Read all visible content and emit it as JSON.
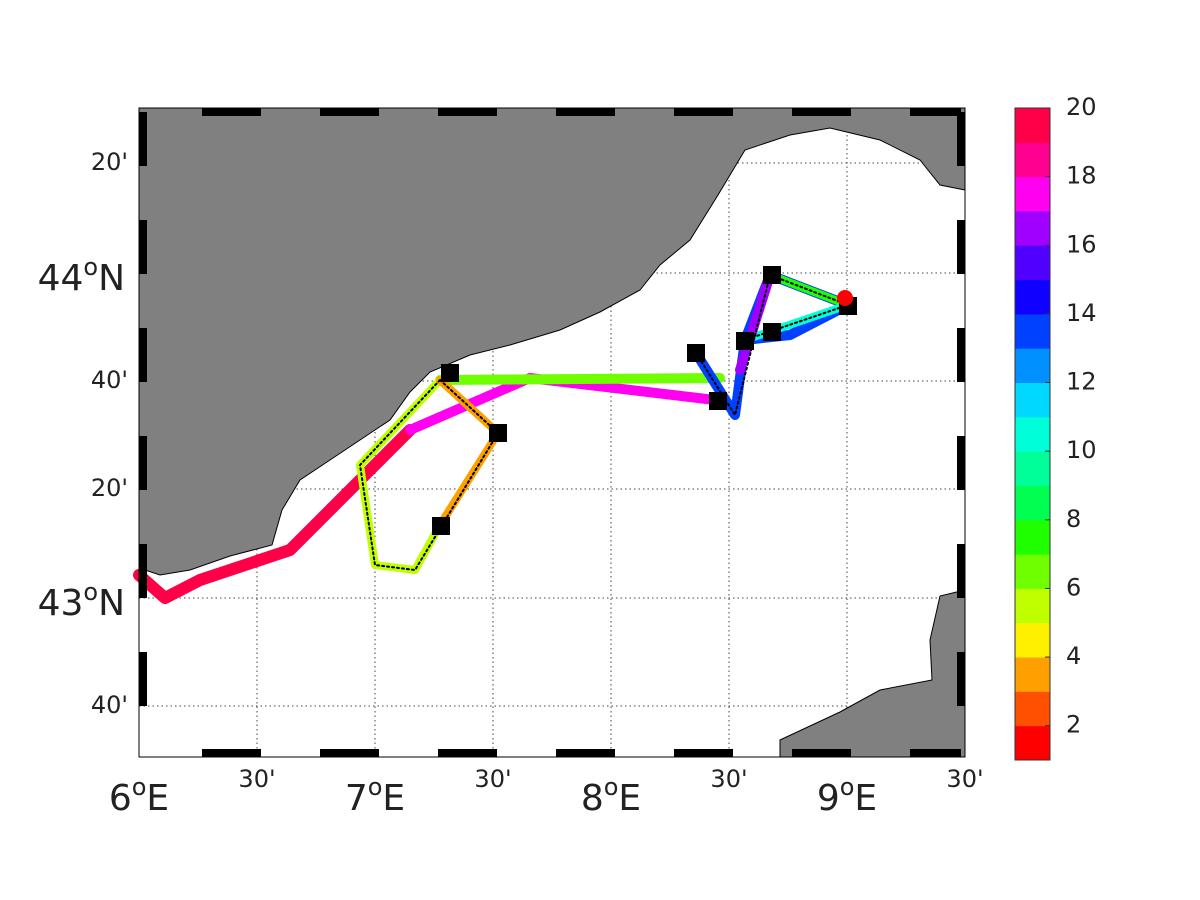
{
  "map": {
    "x_degree_labels": [
      {
        "deg": "6",
        "sup": "o",
        "hemi": "E"
      },
      {
        "deg": "7",
        "sup": "o",
        "hemi": "E"
      },
      {
        "deg": "8",
        "sup": "o",
        "hemi": "E"
      },
      {
        "deg": "9",
        "sup": "o",
        "hemi": "E"
      }
    ],
    "x_minute_labels": [
      "30'",
      "30'",
      "30'",
      "30'"
    ],
    "y_degree_labels": [
      {
        "deg": "44",
        "sup": "o",
        "hemi": "N"
      },
      {
        "deg": "43",
        "sup": "o",
        "hemi": "N"
      }
    ],
    "y_minute_labels": [
      "20'",
      "40'",
      "20'",
      "40'"
    ]
  },
  "colorbar": {
    "lim": [
      1,
      20
    ],
    "ticks": [
      2,
      4,
      6,
      8,
      10,
      12,
      14,
      16,
      18,
      20
    ],
    "colors": [
      "#ff0000",
      "#ff5000",
      "#ffa000",
      "#fff000",
      "#c0ff00",
      "#70ff00",
      "#20ff00",
      "#00ff50",
      "#00ff98",
      "#00ffd8",
      "#00d8ff",
      "#0090ff",
      "#0040ff",
      "#1000ff",
      "#5000ff",
      "#a000ff",
      "#ff00f0",
      "#ff0090",
      "#ff0048"
    ]
  }
}
